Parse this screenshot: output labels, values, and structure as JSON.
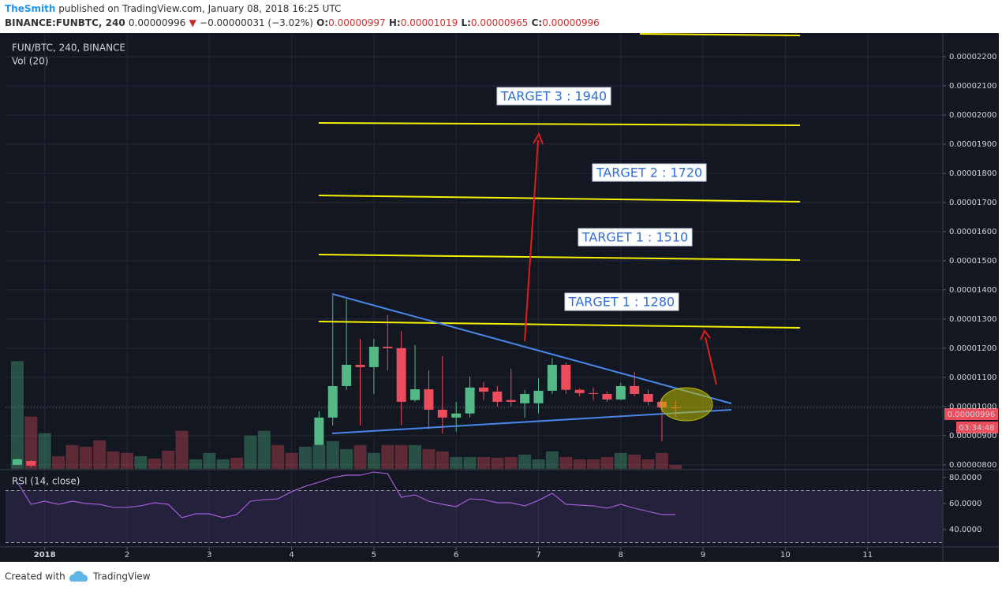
{
  "header": {
    "author": "TheSmith",
    "published": " published on TradingView.com, January 08, 2018 16:25 UTC",
    "symbol": "BINANCE:FUNBTC, 240",
    "price": "0.00000996",
    "direction": "▼",
    "change": "−0.00000031 (−3.02%)",
    "ohlc": [
      {
        "label": "O:",
        "value": "0.00000997"
      },
      {
        "label": "H:",
        "value": "0.00001019"
      },
      {
        "label": "L:",
        "value": "0.00000965"
      },
      {
        "label": "C:",
        "value": "0.00000996"
      }
    ]
  },
  "chart_data": {
    "type": "candlestick",
    "legend": "FUN/BTC, 240, BINANCE",
    "volume_legend": "Vol (20)",
    "rsi_legend": "RSI (14, close)",
    "up_color": "#53b987",
    "down_color": "#eb4d5c",
    "grid": true,
    "x": [
      0.6667,
      0.8333,
      1,
      1.1667,
      1.3333,
      1.5,
      1.6667,
      1.8333,
      2,
      2.1667,
      2.3333,
      2.5,
      2.6667,
      2.8333,
      3,
      3.1667,
      3.3333,
      3.5,
      3.6667,
      3.8333,
      4,
      4.1667,
      4.3333,
      4.5,
      4.6667,
      4.8333,
      5,
      5.1667,
      5.3333,
      5.5,
      5.6667,
      5.8333,
      6,
      6.1667,
      6.3333,
      6.5,
      6.6667,
      6.8333,
      7,
      7.1667,
      7.3333,
      7.5,
      7.6667,
      7.8333,
      8,
      8.1667,
      8.3333,
      8.5,
      8.6667
    ],
    "open": [
      8e-06,
      8.13e-06,
      null,
      null,
      null,
      null,
      null,
      null,
      null,
      null,
      null,
      null,
      null,
      null,
      null,
      null,
      null,
      null,
      null,
      null,
      null,
      null,
      8.68e-06,
      9.62e-06,
      1.07e-05,
      1.143e-05,
      1.135e-05,
      1.205e-05,
      1.2e-05,
      1.022e-05,
      1.059e-05,
      9.89e-06,
      9.62e-06,
      9.76e-06,
      1.065e-05,
      1.051e-05,
      1.022e-05,
      1.011e-05,
      1.011e-05,
      1.054e-05,
      1.143e-05,
      1.057e-05,
      1.046e-05,
      1.043e-05,
      1.024e-05,
      1.07e-05,
      1.043e-05,
      1.016e-05,
      9.97e-06
    ],
    "high": [
      8.21e-06,
      8.16e-06,
      null,
      null,
      null,
      null,
      null,
      null,
      null,
      null,
      null,
      null,
      null,
      null,
      null,
      null,
      null,
      null,
      null,
      null,
      null,
      null,
      9.84e-06,
      1.381e-05,
      1.368e-05,
      1.232e-05,
      1.232e-05,
      1.314e-05,
      1.259e-05,
      1.211e-05,
      1.124e-05,
      1.173e-05,
      1.016e-05,
      1.103e-05,
      1.084e-05,
      1.07e-05,
      1.13e-05,
      1.057e-05,
      1.097e-05,
      1.165e-05,
      1.151e-05,
      1.062e-05,
      1.065e-05,
      1.051e-05,
      1.081e-05,
      1.119e-05,
      1.057e-05,
      1.03e-05,
      1.019e-05
    ],
    "low": [
      7.98e-06,
      7.92e-06,
      null,
      null,
      null,
      null,
      null,
      null,
      null,
      null,
      null,
      null,
      null,
      null,
      null,
      null,
      null,
      null,
      null,
      null,
      null,
      null,
      8.68e-06,
      9.35e-06,
      1.057e-05,
      9.35e-06,
      1.043e-05,
      1.124e-05,
      9.35e-06,
      1.016e-05,
      9.22e-06,
      9.08e-06,
      9.14e-06,
      9.62e-06,
      1.022e-05,
      1e-05,
      1e-05,
      9.62e-06,
      9.76e-06,
      1.043e-05,
      1.043e-05,
      1.035e-05,
      1.022e-05,
      1.016e-05,
      1.022e-05,
      1.035e-05,
      1.003e-05,
      8.81e-06,
      9.65e-06
    ],
    "close": [
      8.19e-06,
      7.97e-06,
      null,
      null,
      null,
      null,
      null,
      null,
      null,
      null,
      null,
      null,
      null,
      null,
      null,
      null,
      null,
      null,
      null,
      null,
      null,
      null,
      9.62e-06,
      1.07e-05,
      1.143e-05,
      1.135e-05,
      1.205e-05,
      1.2e-05,
      1.016e-05,
      1.059e-05,
      9.89e-06,
      9.62e-06,
      9.76e-06,
      1.065e-05,
      1.051e-05,
      1.016e-05,
      1.016e-05,
      1.043e-05,
      1.054e-05,
      1.143e-05,
      1.057e-05,
      1.046e-05,
      1.043e-05,
      1.024e-05,
      1.07e-05,
      1.043e-05,
      1.016e-05,
      9.97e-06,
      9.96e-06
    ],
    "volume": {
      "values": [
        136,
        66,
        45,
        16,
        30,
        28,
        36,
        22,
        20,
        16,
        13,
        23,
        48,
        12,
        20,
        12,
        14,
        42,
        48,
        30,
        20,
        28,
        30,
        35,
        25,
        30,
        20,
        30,
        30,
        30,
        25,
        22,
        15,
        15,
        15,
        14,
        15,
        18,
        12,
        22,
        15,
        12,
        12,
        15,
        20,
        18,
        12,
        20,
        5
      ],
      "up": [
        true,
        false,
        true,
        false,
        false,
        false,
        false,
        false,
        false,
        true,
        false,
        false,
        false,
        true,
        true,
        true,
        false,
        true,
        true,
        false,
        false,
        true,
        true,
        true,
        true,
        false,
        true,
        false,
        false,
        true,
        false,
        false,
        true,
        true,
        false,
        false,
        false,
        true,
        true,
        true,
        false,
        false,
        false,
        false,
        true,
        false,
        false,
        false,
        false
      ],
      "ylim": [
        0,
        550
      ]
    },
    "rsi": {
      "values": [
        76.4,
        59.4,
        61.8,
        59.4,
        61.8,
        60,
        59.4,
        57,
        57,
        58.2,
        60.6,
        59.4,
        49.1,
        52.1,
        52.1,
        49.1,
        51.5,
        61.8,
        63,
        63.6,
        69.1,
        73.3,
        76.4,
        80,
        81.8,
        81.8,
        84.2,
        83,
        64.8,
        66.7,
        61.8,
        59.4,
        57.6,
        63.6,
        63,
        60.6,
        60.6,
        58.2,
        62.4,
        67.9,
        59.4,
        58.8,
        58.2,
        56.4,
        59.4,
        56.4,
        53.9,
        51.5,
        51.5
      ],
      "color": "#a35bd6",
      "band": [
        30,
        70
      ],
      "ylim": [
        27.88,
        85.45
      ],
      "yticks": [
        {
          "value": 80,
          "label": "80.0000"
        },
        {
          "value": 60,
          "label": "60.0000"
        },
        {
          "value": 40,
          "label": "40.0000"
        }
      ]
    },
    "xlim": [
      0.5235,
      11.9137
    ],
    "xticks": [
      {
        "value": 1,
        "label": "2018"
      },
      2,
      3,
      4,
      5,
      6,
      7,
      8,
      9,
      10,
      11
    ],
    "ylim": [
      7.86e-06,
      2.281e-05
    ],
    "yticks": [
      {
        "value": 8e-06,
        "label": "0.00000800"
      },
      {
        "value": 9e-06,
        "label": "0.00000900"
      },
      {
        "value": 1e-05,
        "label": "0.00001000"
      },
      {
        "value": 1.1e-05,
        "label": "0.00001100"
      },
      {
        "value": 1.2e-05,
        "label": "0.00001200"
      },
      {
        "value": 1.3e-05,
        "label": "0.00001300"
      },
      {
        "value": 1.4e-05,
        "label": "0.00001400"
      },
      {
        "value": 1.5e-05,
        "label": "0.00001500"
      },
      {
        "value": 1.6e-05,
        "label": "0.00001600"
      },
      {
        "value": 1.7e-05,
        "label": "0.00001700"
      },
      {
        "value": 1.8e-05,
        "label": "0.00001800"
      },
      {
        "value": 1.9e-05,
        "label": "0.00001900"
      },
      {
        "value": 2e-05,
        "label": "0.00002000"
      },
      {
        "value": 2.1e-05,
        "label": "0.00002100"
      },
      {
        "value": 2.2e-05,
        "label": "0.00002200"
      }
    ],
    "last_price": {
      "value": 9.96e-06,
      "label": "0.00000996"
    },
    "countdown": "03:34:48",
    "annotations": [
      "TARGET 3 : 1940",
      "TARGET 2 : 1720",
      "TARGET 1 : 1510",
      "TARGET 1 : 1280"
    ]
  },
  "footer": {
    "created": "Created with",
    "brand": "TradingView"
  }
}
